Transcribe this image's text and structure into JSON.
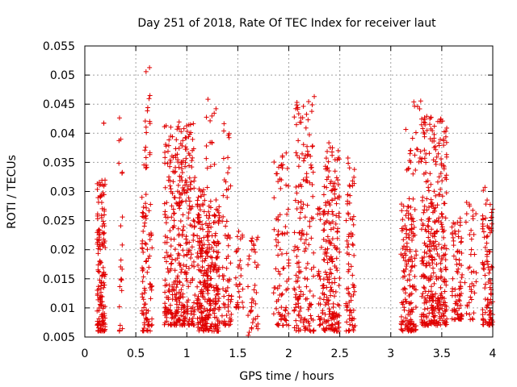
{
  "chart_data": {
    "type": "scatter",
    "title": "Day 251 of 2018, Rate Of TEC Index for receiver laut",
    "xlabel": "GPS time / hours",
    "ylabel": "ROTI / TECUs",
    "xlim": [
      0,
      4
    ],
    "ylim": [
      0.005,
      0.055
    ],
    "xticks": [
      0,
      0.5,
      1,
      1.5,
      2,
      2.5,
      3,
      3.5,
      4
    ],
    "xtick_labels": [
      "0",
      "0.5",
      "1",
      "1.5",
      "2",
      "2.5",
      "3",
      "3.5",
      "4"
    ],
    "yticks": [
      0.005,
      0.01,
      0.015,
      0.02,
      0.025,
      0.03,
      0.035,
      0.04,
      0.045,
      0.05,
      0.055
    ],
    "ytick_labels": [
      "0.005",
      "0.01",
      "0.015",
      "0.02",
      "0.025",
      "0.03",
      "0.035",
      "0.04",
      "0.045",
      "0.05",
      "0.055"
    ],
    "grid": true,
    "marker": "+",
    "color": "#e00000",
    "series": [
      {
        "name": "ROTI",
        "clusters": [
          {
            "x": [
              0.12,
              0.2
            ],
            "y": [
              0.006,
              0.032
            ],
            "n": 150
          },
          {
            "x": [
              0.18,
              0.2
            ],
            "y": [
              0.041,
              0.042
            ],
            "n": 2
          },
          {
            "x": [
              0.33,
              0.37
            ],
            "y": [
              0.006,
              0.043
            ],
            "n": 22
          },
          {
            "x": [
              0.56,
              0.66
            ],
            "y": [
              0.006,
              0.03
            ],
            "n": 90
          },
          {
            "x": [
              0.58,
              0.64
            ],
            "y": [
              0.034,
              0.052
            ],
            "n": 20
          },
          {
            "x": [
              0.78,
              1.08
            ],
            "y": [
              0.007,
              0.042
            ],
            "n": 380
          },
          {
            "x": [
              1.1,
              1.32
            ],
            "y": [
              0.006,
              0.031
            ],
            "n": 320
          },
          {
            "x": [
              1.18,
              1.3
            ],
            "y": [
              0.034,
              0.048
            ],
            "n": 14
          },
          {
            "x": [
              1.34,
              1.44
            ],
            "y": [
              0.007,
              0.042
            ],
            "n": 70
          },
          {
            "x": [
              1.48,
              1.56
            ],
            "y": [
              0.01,
              0.024
            ],
            "n": 30
          },
          {
            "x": [
              1.6,
              1.7
            ],
            "y": [
              0.005,
              0.024
            ],
            "n": 40
          },
          {
            "x": [
              1.85,
              2.0
            ],
            "y": [
              0.007,
              0.037
            ],
            "n": 90
          },
          {
            "x": [
              2.05,
              2.25
            ],
            "y": [
              0.006,
              0.047
            ],
            "n": 170
          },
          {
            "x": [
              2.28,
              2.34
            ],
            "y": [
              0.007,
              0.028
            ],
            "n": 30
          },
          {
            "x": [
              2.34,
              2.5
            ],
            "y": [
              0.006,
              0.039
            ],
            "n": 200
          },
          {
            "x": [
              2.56,
              2.65
            ],
            "y": [
              0.006,
              0.037
            ],
            "n": 80
          },
          {
            "x": [
              3.1,
              3.25
            ],
            "y": [
              0.006,
              0.029
            ],
            "n": 160
          },
          {
            "x": [
              3.14,
              3.3
            ],
            "y": [
              0.033,
              0.046
            ],
            "n": 25
          },
          {
            "x": [
              3.3,
              3.55
            ],
            "y": [
              0.007,
              0.043
            ],
            "n": 360
          },
          {
            "x": [
              3.6,
              3.7
            ],
            "y": [
              0.008,
              0.027
            ],
            "n": 80
          },
          {
            "x": [
              3.72,
              3.84
            ],
            "y": [
              0.008,
              0.029
            ],
            "n": 40
          },
          {
            "x": [
              3.9,
              4.0
            ],
            "y": [
              0.007,
              0.031
            ],
            "n": 100
          }
        ]
      }
    ]
  }
}
